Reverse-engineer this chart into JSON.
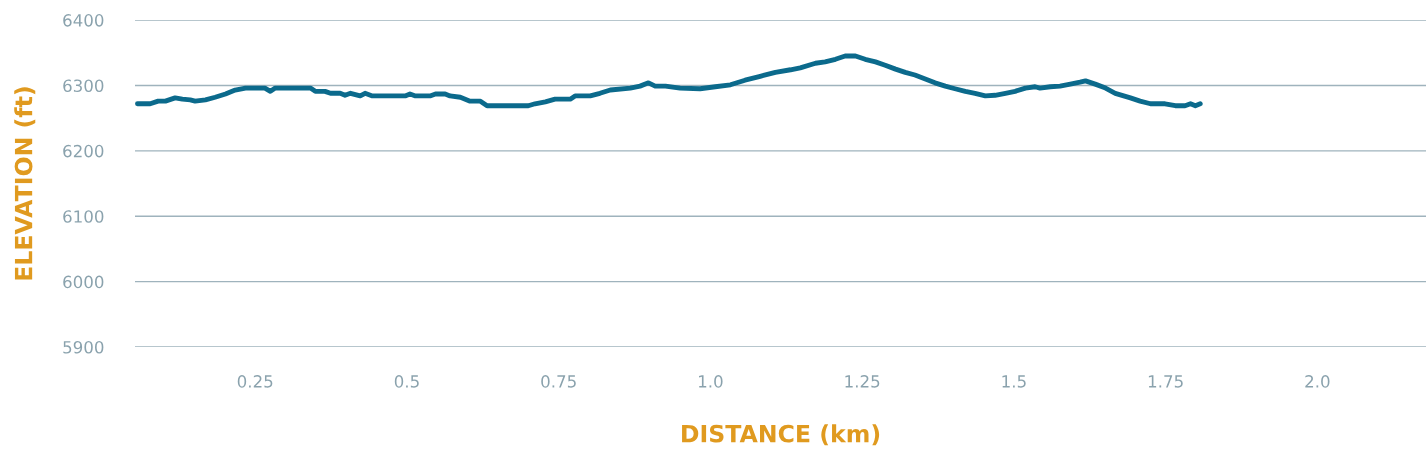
{
  "chart_data": {
    "type": "line",
    "xlabel": "DISTANCE (km)",
    "ylabel": "ELEVATION (ft)",
    "xlim": [
      0.052,
      2.179
    ],
    "xticks": [
      0.25,
      0.5,
      0.75,
      {
        "value": 1,
        "label": "1.0"
      },
      1.25,
      1.5,
      1.75,
      {
        "value": 2,
        "label": "2.0"
      }
    ],
    "ylim": [
      5900,
      6400
    ],
    "yticks": [
      5900,
      6000,
      6100,
      6200,
      6300,
      6400
    ],
    "grid": "y",
    "marker": "none",
    "line_style": "solid",
    "series": [
      {
        "color": "#0b6a8c",
        "x": [
          0.056,
          0.077,
          0.09,
          0.102,
          0.118,
          0.13,
          0.143,
          0.151,
          0.168,
          0.184,
          0.201,
          0.217,
          0.234,
          0.266,
          0.275,
          0.283,
          0.341,
          0.349,
          0.365,
          0.374,
          0.39,
          0.398,
          0.407,
          0.423,
          0.431,
          0.443,
          0.472,
          0.497,
          0.505,
          0.514,
          0.538,
          0.547,
          0.563,
          0.571,
          0.588,
          0.604,
          0.621,
          0.632,
          0.7,
          0.711,
          0.728,
          0.744,
          0.769,
          0.777,
          0.802,
          0.818,
          0.835,
          0.868,
          0.884,
          0.898,
          0.909,
          0.926,
          0.95,
          0.983,
          1.008,
          1.033,
          1.057,
          1.082,
          1.107,
          1.132,
          1.148,
          1.173,
          1.189,
          1.206,
          1.222,
          1.239,
          1.255,
          1.272,
          1.288,
          1.305,
          1.321,
          1.337,
          1.354,
          1.37,
          1.387,
          1.403,
          1.42,
          1.436,
          1.453,
          1.469,
          1.486,
          1.502,
          1.519,
          1.535,
          1.543,
          1.56,
          1.576,
          1.593,
          1.609,
          1.618,
          1.634,
          1.651,
          1.667,
          1.692,
          1.708,
          1.725,
          1.749,
          1.766,
          1.782,
          1.791,
          1.799,
          1.807
        ],
        "values": [
          6272,
          6272,
          6276,
          6276,
          6281,
          6279,
          6278,
          6276,
          6278,
          6282,
          6287,
          6293,
          6296,
          6296,
          6291,
          6296,
          6296,
          6291,
          6291,
          6288,
          6288,
          6285,
          6288,
          6284,
          6288,
          6284,
          6284,
          6284,
          6287,
          6284,
          6284,
          6287,
          6287,
          6284,
          6282,
          6276,
          6276,
          6269,
          6269,
          6272,
          6275,
          6279,
          6279,
          6284,
          6284,
          6288,
          6293,
          6296,
          6299,
          6304,
          6299,
          6299,
          6296,
          6295,
          6298,
          6301,
          6308,
          6314,
          6320,
          6324,
          6327,
          6334,
          6336,
          6340,
          6345,
          6345,
          6340,
          6336,
          6331,
          6325,
          6320,
          6316,
          6310,
          6304,
          6299,
          6295,
          6291,
          6288,
          6284,
          6285,
          6288,
          6291,
          6296,
          6298,
          6296,
          6298,
          6299,
          6302,
          6305,
          6307,
          6302,
          6296,
          6288,
          6281,
          6276,
          6272,
          6272,
          6269,
          6269,
          6272,
          6269,
          6272
        ]
      }
    ]
  }
}
